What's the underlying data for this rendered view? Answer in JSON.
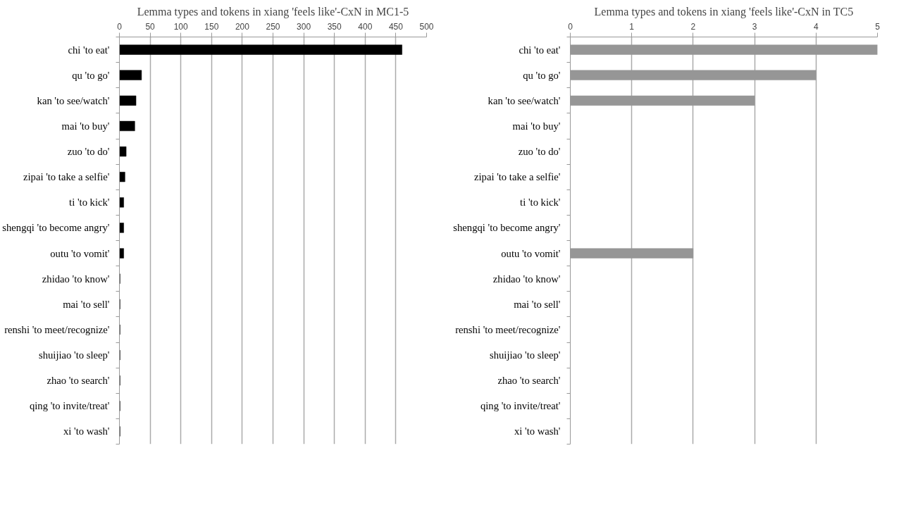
{
  "chart_data": [
    {
      "type": "bar",
      "orientation": "horizontal",
      "title": "Lemma types and tokens in xiang 'feels like'-CxN in MC1-5",
      "categories": [
        "chi 'to eat'",
        "qu 'to go'",
        "kan 'to see/watch'",
        "mai 'to buy'",
        "zuo 'to do'",
        "zipai 'to take a selfie'",
        "ti 'to kick'",
        "shengqi 'to become angry'",
        "outu 'to vomit'",
        "zhidao 'to know'",
        "mai 'to sell'",
        "renshi 'to meet/recognize'",
        "shuijiao 'to sleep'",
        "zhao 'to search'",
        "qing 'to invite/treat'",
        "xi 'to wash'"
      ],
      "values": [
        460,
        36,
        27,
        25,
        11,
        9,
        7,
        7,
        7,
        1,
        1,
        1,
        1,
        1,
        1,
        1
      ],
      "color": "#000000",
      "xlim": [
        0,
        500
      ],
      "xticks": [
        0,
        50,
        100,
        150,
        200,
        250,
        300,
        350,
        400,
        450,
        500
      ],
      "grid": "x"
    },
    {
      "type": "bar",
      "orientation": "horizontal",
      "title": "Lemma types and tokens in xiang 'feels like'-CxN in TC5",
      "categories": [
        "chi 'to eat'",
        "qu 'to go'",
        "kan 'to see/watch'",
        "mai 'to buy'",
        "zuo 'to do'",
        "zipai 'to take a selfie'",
        "ti 'to kick'",
        "shengqi 'to become angry'",
        "outu 'to vomit'",
        "zhidao 'to know'",
        "mai 'to sell'",
        "renshi 'to meet/recognize'",
        "shuijiao 'to sleep'",
        "zhao 'to search'",
        "qing 'to invite/treat'",
        "xi 'to wash'"
      ],
      "values": [
        5,
        4,
        3,
        0,
        0,
        0,
        0,
        0,
        2,
        0,
        0,
        0,
        0,
        0,
        0,
        0
      ],
      "color": "#969696",
      "xlim": [
        0,
        5
      ],
      "xticks": [
        0,
        1,
        2,
        3,
        4,
        5
      ],
      "grid": "x"
    }
  ]
}
